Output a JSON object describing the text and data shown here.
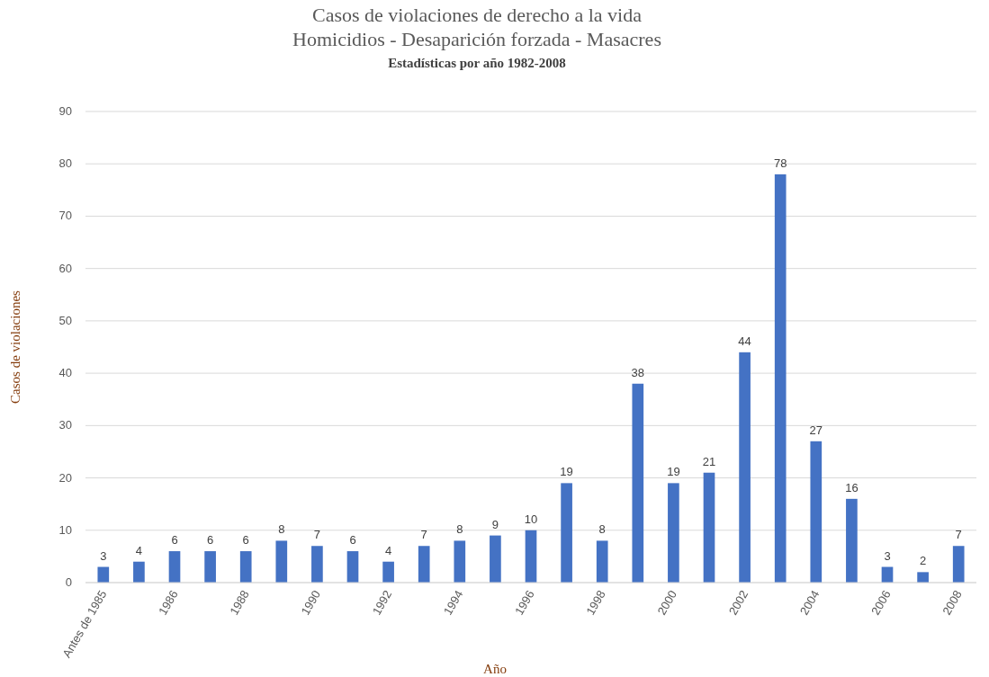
{
  "chart_data": {
    "type": "bar",
    "title": "Casos de violaciones de derecho a la vida\nHomicidios - Desaparición forzada - Masacres",
    "subtitle": "Estadísticas por año 1982-2008",
    "xlabel": "Año",
    "ylabel": "Casos de violaciones",
    "categories": [
      "Antes de 1985",
      null,
      "1986",
      null,
      "1988",
      null,
      "1990",
      null,
      "1992",
      null,
      "1994",
      null,
      "1996",
      null,
      "1998",
      null,
      "2000",
      null,
      "2002",
      null,
      "2004",
      null,
      "2006",
      null,
      "2008"
    ],
    "values": [
      3,
      4,
      6,
      6,
      6,
      8,
      7,
      6,
      4,
      7,
      8,
      9,
      10,
      19,
      8,
      38,
      19,
      21,
      44,
      78,
      27,
      16,
      3,
      2,
      7
    ],
    "color": "#4472c4",
    "ylim": [
      0,
      90
    ],
    "yticks": [
      0,
      10,
      20,
      30,
      40,
      50,
      60,
      70,
      80,
      90
    ],
    "grid": "y",
    "data_labels": true
  }
}
